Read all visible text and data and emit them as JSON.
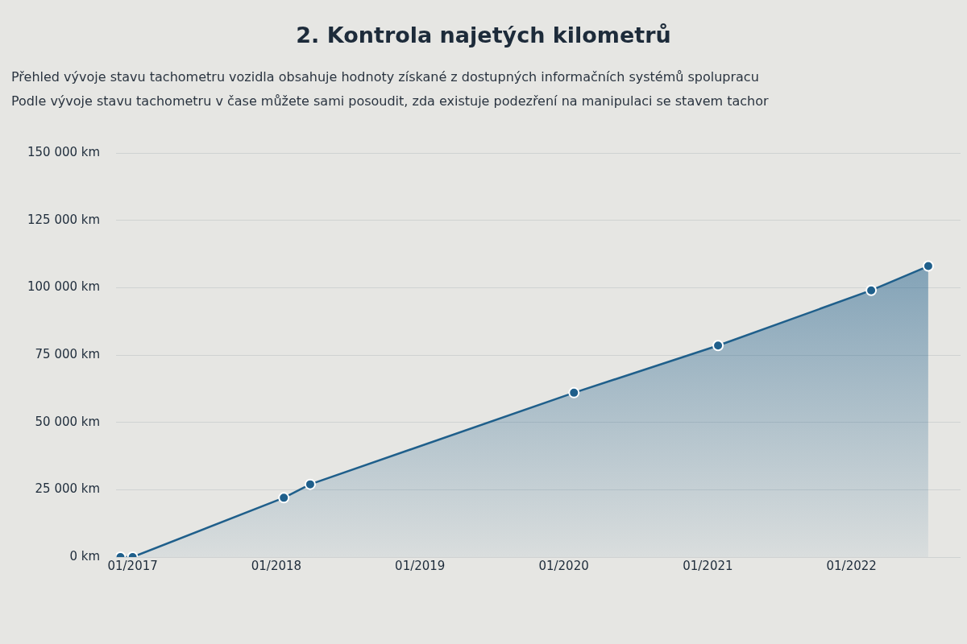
{
  "chart_data": {
    "type": "area",
    "title": "2. Kontrola najetých kilometrů",
    "subtitle": "Přehled vývoje stavu tachometru vozidla obsahuje hodnoty získané z dostupných informačních systémů spolupracu\nPodle vývoje stavu tachometru v čase můžete sami posoudit, zda existuje podezření na manipulaci se stavem tachor",
    "x": [
      "2016-12-01",
      "2017-01-01",
      "2018-01-20",
      "2018-03-28",
      "2020-01-27",
      "2021-01-27",
      "2022-02-20",
      "2022-07-15"
    ],
    "series": [
      {
        "color": "#1f5f8b",
        "values": [
          0,
          0,
          22000,
          27000,
          61000,
          78500,
          99000,
          108000
        ]
      }
    ],
    "xlim": [
      "2016-11-20",
      "2022-10-05"
    ],
    "xticks": [
      {
        "value": "2017-01-01",
        "label": "01/2017"
      },
      {
        "value": "2018-01-01",
        "label": "01/2018"
      },
      {
        "value": "2019-01-01",
        "label": "01/2019"
      },
      {
        "value": "2020-01-01",
        "label": "01/2020"
      },
      {
        "value": "2021-01-01",
        "label": "01/2021"
      },
      {
        "value": "2022-01-01",
        "label": "01/2022"
      }
    ],
    "ylim": [
      0,
      150000
    ],
    "yticks": [
      {
        "value": 0,
        "label": "0 km"
      },
      {
        "value": 25000,
        "label": "25 000 km"
      },
      {
        "value": 50000,
        "label": "50 000 km"
      },
      {
        "value": 75000,
        "label": "75 000 km"
      },
      {
        "value": 100000,
        "label": "100 000 km"
      },
      {
        "value": 125000,
        "label": "125 000 km"
      },
      {
        "value": 150000,
        "label": "150 000 km"
      }
    ],
    "grid": "y",
    "legend": false,
    "marker": "circle",
    "line_style": "solid"
  }
}
